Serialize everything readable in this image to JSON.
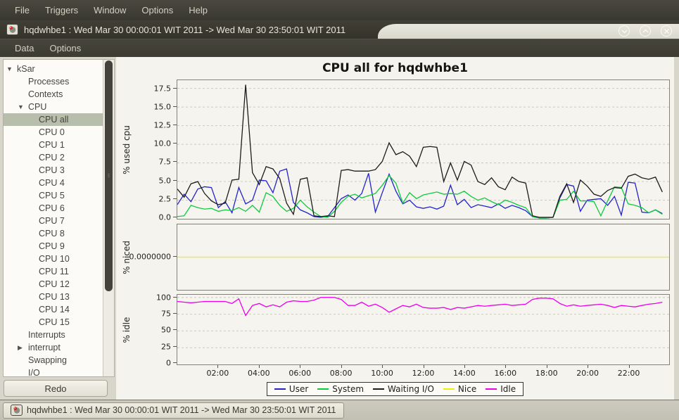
{
  "window": {
    "menubar": {
      "items": [
        "File",
        "Triggers",
        "Window",
        "Options",
        "Help"
      ]
    },
    "titlebar": {
      "title": "hqdwhbe1 : Wed Mar 30 00:00:01 WIT 2011 -> Wed Mar 30 23:50:01 WIT 2011",
      "controls": [
        "minimize",
        "maximize",
        "close"
      ]
    },
    "menubar2": {
      "items": [
        "Data",
        "Options"
      ]
    }
  },
  "sidebar": {
    "redo_label": "Redo",
    "tree": [
      {
        "label": "kSar",
        "level": 0,
        "expander": "down"
      },
      {
        "label": "Processes",
        "level": 1
      },
      {
        "label": "Contexts",
        "level": 1
      },
      {
        "label": "CPU",
        "level": 1,
        "expander": "down"
      },
      {
        "label": "CPU all",
        "level": 2,
        "selected": true
      },
      {
        "label": "CPU 0",
        "level": 2
      },
      {
        "label": "CPU 1",
        "level": 2
      },
      {
        "label": "CPU 2",
        "level": 2
      },
      {
        "label": "CPU 3",
        "level": 2
      },
      {
        "label": "CPU 4",
        "level": 2
      },
      {
        "label": "CPU 5",
        "level": 2
      },
      {
        "label": "CPU 6",
        "level": 2
      },
      {
        "label": "CPU 7",
        "level": 2
      },
      {
        "label": "CPU 8",
        "level": 2
      },
      {
        "label": "CPU 9",
        "level": 2
      },
      {
        "label": "CPU 10",
        "level": 2
      },
      {
        "label": "CPU 11",
        "level": 2
      },
      {
        "label": "CPU 12",
        "level": 2
      },
      {
        "label": "CPU 13",
        "level": 2
      },
      {
        "label": "CPU 14",
        "level": 2
      },
      {
        "label": "CPU 15",
        "level": 2
      },
      {
        "label": "Interrupts",
        "level": 1
      },
      {
        "label": "interrupt",
        "level": 1,
        "expander": "right"
      },
      {
        "label": "Swapping",
        "level": 1
      },
      {
        "label": "I/O",
        "level": 1
      }
    ]
  },
  "statusbar": {
    "text": "hqdwhbe1 : Wed Mar 30 00:00:01 WIT 2011 -> Wed Mar 30 23:50:01 WIT 2011"
  },
  "chart_data": {
    "type": "line",
    "title": "CPU all for hqdwhbe1",
    "x": {
      "unit": "time_of_day",
      "start": "00:00",
      "end": "23:40",
      "step_minutes": 20,
      "n_points": 72,
      "domain_minutes": [
        0,
        1440
      ],
      "tick_minutes": [
        120,
        240,
        360,
        480,
        600,
        720,
        840,
        960,
        1080,
        1200,
        1320
      ],
      "tick_labels": [
        "02:00",
        "04:00",
        "06:00",
        "08:00",
        "10:00",
        "12:00",
        "14:00",
        "16:00",
        "18:00",
        "20:00",
        "22:00"
      ]
    },
    "grid": "horizontal-dashed",
    "subcharts": [
      {
        "ylabel": "% used cpu",
        "ylim": [
          0,
          18.6
        ],
        "yticks": [
          0,
          2.5,
          5,
          7.5,
          10,
          12.5,
          15,
          17.5
        ],
        "ytick_labels": [
          "0.0",
          "2.5",
          "5.0",
          "7.5",
          "10.0",
          "12.5",
          "15.0",
          "17.5"
        ],
        "series": [
          {
            "name": "User",
            "color": "#2323cd",
            "values": [
              1.9,
              3.3,
              2.3,
              4.0,
              4.3,
              4.2,
              1.5,
              2.3,
              0.8,
              4.2,
              2.0,
              2.5,
              5.2,
              5.1,
              3.5,
              6.4,
              6.7,
              2.2,
              1.2,
              0.8,
              0.3,
              0.2,
              0.3,
              1.5,
              2.7,
              3.2,
              2.5,
              3.4,
              6.1,
              0.9,
              3.5,
              6.0,
              3.7,
              2.0,
              2.5,
              1.6,
              1.4,
              1.6,
              1.3,
              1.7,
              4.5,
              1.9,
              2.6,
              1.5,
              1.9,
              1.7,
              1.5,
              2.0,
              1.4,
              1.8,
              1.5,
              1.1,
              0.3,
              0.1,
              0.1,
              0.2,
              2.8,
              4.6,
              4.4,
              1.0,
              2.5,
              2.6,
              2.7,
              1.8,
              3.0,
              0.5,
              4.9,
              4.8,
              0.9,
              0.8,
              1.2,
              0.7
            ]
          },
          {
            "name": "System",
            "color": "#0ecb3e",
            "values": [
              0.3,
              0.4,
              1.8,
              1.5,
              1.3,
              1.4,
              1.0,
              1.2,
              1.1,
              1.5,
              1.0,
              1.8,
              0.9,
              3.5,
              3.0,
              1.8,
              1.0,
              1.4,
              2.5,
              1.6,
              0.9,
              0.3,
              0.2,
              1.0,
              2.2,
              3.0,
              3.3,
              2.8,
              3.1,
              3.4,
              4.5,
              5.8,
              4.8,
              2.1,
              3.5,
              2.7,
              3.2,
              3.4,
              3.6,
              3.3,
              3.4,
              3.3,
              3.7,
              3.0,
              2.5,
              2.8,
              2.3,
              1.9,
              2.5,
              2.2,
              1.8,
              1.5,
              0.3,
              0.1,
              0.1,
              0.2,
              2.5,
              2.6,
              3.7,
              2.4,
              2.4,
              2.3,
              0.4,
              2.4,
              4.3,
              4.2,
              2.0,
              1.8,
              1.5,
              0.8,
              1.2,
              0.6
            ]
          },
          {
            "name": "Waiting I/O",
            "color": "#1c1c1c",
            "values": [
              4.0,
              2.9,
              4.7,
              5.0,
              3.4,
              2.4,
              1.9,
              2.1,
              5.2,
              5.3,
              18.0,
              6.2,
              4.6,
              7.0,
              6.7,
              5.4,
              2.1,
              0.6,
              5.3,
              5.5,
              0.4,
              0.3,
              0.4,
              0.3,
              6.5,
              6.6,
              6.4,
              6.4,
              6.4,
              6.6,
              7.7,
              10.2,
              8.6,
              9.0,
              8.4,
              7.0,
              9.6,
              9.7,
              9.6,
              5.0,
              7.5,
              5.2,
              7.7,
              7.2,
              5.0,
              4.6,
              5.5,
              4.3,
              3.9,
              5.6,
              5.0,
              4.8,
              0.4,
              0.2,
              0.2,
              0.2,
              3.0,
              4.7,
              2.2,
              5.2,
              4.4,
              3.3,
              3.0,
              3.8,
              4.2,
              4.1,
              5.7,
              6.0,
              5.5,
              5.3,
              5.6,
              3.6
            ]
          }
        ]
      },
      {
        "ylabel": "% niced",
        "ylim": [
          -1,
          1
        ],
        "yticks": [
          0
        ],
        "ytick_labels": [
          "0.0000000"
        ],
        "series": [
          {
            "name": "Nice",
            "color": "#f0f000",
            "constant": 0
          }
        ]
      },
      {
        "ylabel": "% idle",
        "ylim": [
          0,
          104
        ],
        "yticks": [
          0,
          25,
          50,
          75,
          100
        ],
        "ytick_labels": [
          "0",
          "25",
          "50",
          "75",
          "100"
        ],
        "series": [
          {
            "name": "Idle",
            "color": "#ee00ee",
            "values": [
              94,
              93,
              92,
              93,
              94,
              94,
              94,
              94,
              91,
              98,
              73,
              88,
              91,
              86,
              89,
              86,
              93,
              95,
              94,
              94,
              96,
              100,
              100,
              100,
              97,
              88,
              88,
              93,
              87,
              90,
              85,
              78,
              83,
              88,
              86,
              90,
              85,
              84,
              84,
              85,
              82,
              85,
              84,
              86,
              88,
              87,
              88,
              89,
              90,
              88,
              89,
              90,
              97,
              99,
              99,
              98,
              91,
              87,
              89,
              87,
              88,
              89,
              90,
              88,
              85,
              88,
              87,
              86,
              88,
              90,
              91,
              93
            ]
          }
        ]
      }
    ],
    "legend": {
      "position": "bottom",
      "items": [
        {
          "label": "User",
          "color": "#2323cd"
        },
        {
          "label": "System",
          "color": "#0ecb3e"
        },
        {
          "label": "Waiting I/O",
          "color": "#1c1c1c"
        },
        {
          "label": "Nice",
          "color": "#f0f000"
        },
        {
          "label": "Idle",
          "color": "#ee00ee"
        }
      ]
    }
  }
}
